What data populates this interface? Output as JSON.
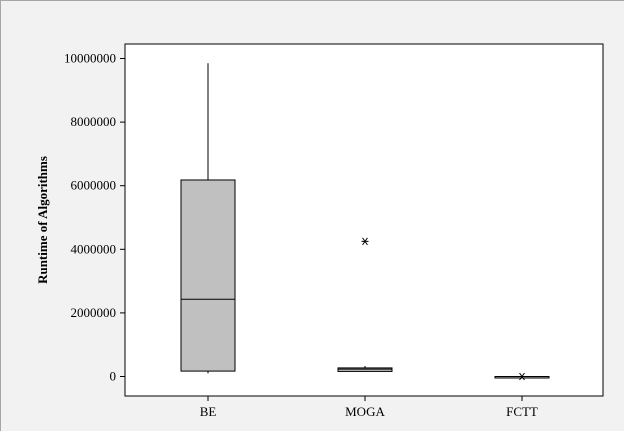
{
  "chart_data": {
    "type": "boxplot",
    "title": "",
    "xlabel": "",
    "ylabel": "Runtime of Algorithms",
    "ylim": [
      -600000,
      10300000
    ],
    "yticks": [
      0,
      2000000,
      4000000,
      6000000,
      8000000,
      10000000
    ],
    "ytick_labels": [
      "0",
      "2000000",
      "4000000",
      "6000000",
      "8000000",
      "10000000"
    ],
    "categories": [
      "BE",
      "MOGA",
      "FCTT"
    ],
    "boxes": [
      {
        "category": "BE",
        "whisker_low": 100000,
        "q1": 170000,
        "median": 2430000,
        "q3": 6180000,
        "whisker_high": 9850000,
        "outliers": []
      },
      {
        "category": "MOGA",
        "whisker_low": 150000,
        "q1": 160000,
        "median": 230000,
        "q3": 270000,
        "whisker_high": 330000,
        "outliers": [
          4250000
        ]
      },
      {
        "category": "FCTT",
        "whisker_low": 0,
        "q1": 0,
        "median": 0,
        "q3": 0,
        "whisker_high": 0,
        "outliers": [
          0
        ]
      }
    ],
    "grid": false,
    "colors": {
      "box_fill": "#c0c0c0",
      "box_stroke": "#000000",
      "background": "#f2f2f2",
      "plot_bg": "#ffffff"
    }
  }
}
